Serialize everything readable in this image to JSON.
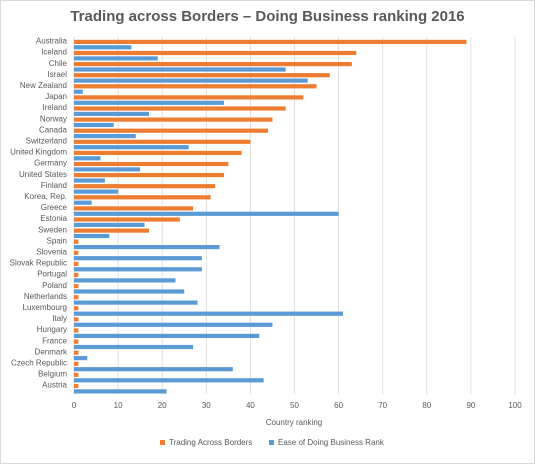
{
  "chart_data": {
    "type": "bar",
    "orientation": "horizontal",
    "title": "Trading across Borders – Doing Business ranking 2016",
    "xlabel": "Country ranking",
    "ylabel": "",
    "xlim": [
      0,
      100
    ],
    "x_ticks": [
      0,
      10,
      20,
      30,
      40,
      50,
      60,
      70,
      80,
      90,
      100
    ],
    "grid": true,
    "legend_position": "bottom",
    "categories": [
      "Australia",
      "Iceland",
      "Chile",
      "Israel",
      "New Zealand",
      "Japan",
      "Ireland",
      "Norway",
      "Canada",
      "Switzerland",
      "United Kingdom",
      "Germany",
      "United States",
      "Finland",
      "Korea, Rep.",
      "Greece",
      "Estonia",
      "Sweden",
      "Spain",
      "Slovenia",
      "Slovak Republic",
      "Portugal",
      "Poland",
      "Netherlands",
      "Luxembourg",
      "Italy",
      "Hungary",
      "France",
      "Denmark",
      "Czech Republic",
      "Belgium",
      "Austria"
    ],
    "series": [
      {
        "name": "Trading Across Borders",
        "color": "#ED7D31",
        "values": [
          89,
          64,
          63,
          58,
          55,
          52,
          48,
          45,
          44,
          40,
          38,
          35,
          34,
          32,
          31,
          27,
          24,
          17,
          1,
          1,
          1,
          1,
          1,
          1,
          1,
          1,
          1,
          1,
          1,
          1,
          1,
          1
        ]
      },
      {
        "name": "Ease of Doing Business Rank",
        "color": "#5B9BD5",
        "values": [
          13,
          19,
          48,
          53,
          2,
          34,
          17,
          9,
          14,
          26,
          6,
          15,
          7,
          10,
          4,
          60,
          16,
          8,
          33,
          29,
          29,
          23,
          25,
          28,
          61,
          45,
          42,
          27,
          3,
          36,
          43,
          21
        ]
      }
    ]
  }
}
